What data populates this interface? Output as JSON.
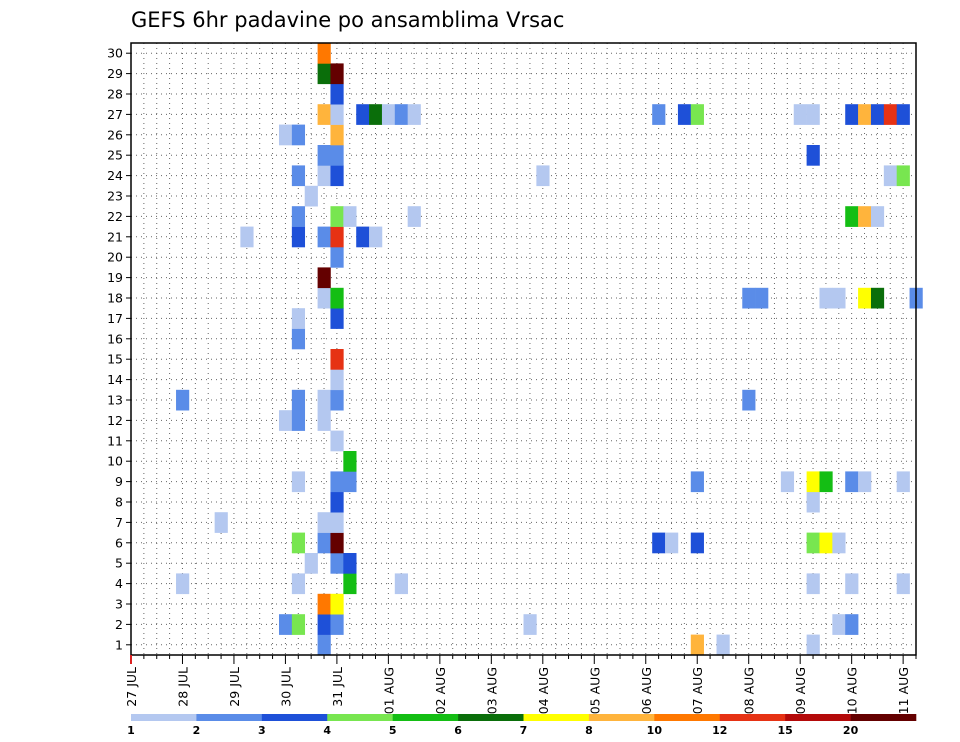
{
  "chart_data": {
    "type": "heatmap",
    "title": "GEFS 6hr padavine po ansamblima Vrsac",
    "xlabel": "",
    "ylabel": "",
    "x_ticks": [
      "27 JUL",
      "28 JUL",
      "29 JUL",
      "30 JUL",
      "31 JUL",
      "01 AUG",
      "02 AUG",
      "03 AUG",
      "04 AUG",
      "05 AUG",
      "06 AUG",
      "07 AUG",
      "08 AUG",
      "09 AUG",
      "10 AUG",
      "11 AUG"
    ],
    "x_unit": "6-hour step from 27 JUL 00Z",
    "xlim": [
      0,
      61
    ],
    "y_ticks": [
      1,
      2,
      3,
      4,
      5,
      6,
      7,
      8,
      9,
      10,
      11,
      12,
      13,
      14,
      15,
      16,
      17,
      18,
      19,
      20,
      21,
      22,
      23,
      24,
      25,
      26,
      27,
      28,
      29,
      30
    ],
    "ylim": [
      0.5,
      30.5
    ],
    "grid": true,
    "legend_position": "bottom",
    "legend_levels": [
      "1",
      "2",
      "3",
      "4",
      "5",
      "6",
      "7",
      "8",
      "10",
      "12",
      "15",
      "20"
    ],
    "colors": [
      "#b4c8f0",
      "#5a8ce8",
      "#1e50d8",
      "#78e650",
      "#14be14",
      "#0a6e0a",
      "#ffff00",
      "#ffb43c",
      "#ff7800",
      "#e63214",
      "#b40a0a",
      "#640000"
    ],
    "cells": [
      [
        15,
        1,
        1
      ],
      [
        44,
        1,
        7
      ],
      [
        46,
        1,
        0
      ],
      [
        53,
        1,
        0
      ],
      [
        12,
        2,
        1
      ],
      [
        13,
        2,
        3
      ],
      [
        15,
        2,
        2
      ],
      [
        16,
        2,
        1
      ],
      [
        31,
        2,
        0
      ],
      [
        55,
        2,
        0
      ],
      [
        56,
        2,
        1
      ],
      [
        15,
        3,
        8
      ],
      [
        16,
        3,
        6
      ],
      [
        4,
        4,
        0
      ],
      [
        13,
        4,
        0
      ],
      [
        17,
        4,
        4
      ],
      [
        21,
        4,
        0
      ],
      [
        53,
        4,
        0
      ],
      [
        56,
        4,
        0
      ],
      [
        60,
        4,
        0
      ],
      [
        14,
        5,
        0
      ],
      [
        16,
        5,
        1
      ],
      [
        17,
        5,
        2
      ],
      [
        13,
        6,
        3
      ],
      [
        15,
        6,
        1
      ],
      [
        16,
        6,
        11
      ],
      [
        41,
        6,
        2
      ],
      [
        42,
        6,
        0
      ],
      [
        44,
        6,
        2
      ],
      [
        53,
        6,
        3
      ],
      [
        54,
        6,
        6
      ],
      [
        55,
        6,
        0
      ],
      [
        7,
        7,
        0
      ],
      [
        15,
        7,
        0
      ],
      [
        16,
        7,
        0
      ],
      [
        16,
        8,
        2
      ],
      [
        53,
        8,
        0
      ],
      [
        13,
        9,
        0
      ],
      [
        16,
        9,
        1
      ],
      [
        17,
        9,
        1
      ],
      [
        44,
        9,
        1
      ],
      [
        51,
        9,
        0
      ],
      [
        53,
        9,
        6
      ],
      [
        54,
        9,
        4
      ],
      [
        56,
        9,
        1
      ],
      [
        57,
        9,
        0
      ],
      [
        60,
        9,
        0
      ],
      [
        17,
        10,
        4
      ],
      [
        16,
        11,
        0
      ],
      [
        12,
        12,
        0
      ],
      [
        13,
        12,
        1
      ],
      [
        15,
        12,
        0
      ],
      [
        4,
        13,
        1
      ],
      [
        13,
        13,
        1
      ],
      [
        15,
        13,
        0
      ],
      [
        16,
        13,
        1
      ],
      [
        48,
        13,
        1
      ],
      [
        16,
        14,
        0
      ],
      [
        16,
        15,
        9
      ],
      [
        13,
        16,
        1
      ],
      [
        13,
        17,
        0
      ],
      [
        16,
        17,
        2
      ],
      [
        15,
        18,
        0
      ],
      [
        16,
        18,
        4
      ],
      [
        48,
        18,
        1
      ],
      [
        49,
        18,
        1
      ],
      [
        54,
        18,
        0
      ],
      [
        55,
        18,
        0
      ],
      [
        57,
        18,
        6
      ],
      [
        58,
        18,
        5
      ],
      [
        61,
        18,
        1
      ],
      [
        15,
        19,
        11
      ],
      [
        16,
        20,
        1
      ],
      [
        9,
        21,
        0
      ],
      [
        13,
        21,
        2
      ],
      [
        15,
        21,
        1
      ],
      [
        16,
        21,
        9
      ],
      [
        18,
        21,
        2
      ],
      [
        19,
        21,
        0
      ],
      [
        13,
        22,
        1
      ],
      [
        16,
        22,
        3
      ],
      [
        17,
        22,
        0
      ],
      [
        22,
        22,
        0
      ],
      [
        56,
        22,
        4
      ],
      [
        57,
        22,
        7
      ],
      [
        58,
        22,
        0
      ],
      [
        14,
        23,
        0
      ],
      [
        13,
        24,
        1
      ],
      [
        15,
        24,
        0
      ],
      [
        16,
        24,
        2
      ],
      [
        32,
        24,
        0
      ],
      [
        59,
        24,
        0
      ],
      [
        60,
        24,
        3
      ],
      [
        15,
        25,
        1
      ],
      [
        16,
        25,
        1
      ],
      [
        53,
        25,
        2
      ],
      [
        12,
        26,
        0
      ],
      [
        13,
        26,
        1
      ],
      [
        16,
        26,
        7
      ],
      [
        15,
        27,
        7
      ],
      [
        16,
        27,
        0
      ],
      [
        18,
        27,
        2
      ],
      [
        19,
        27,
        5
      ],
      [
        20,
        27,
        0
      ],
      [
        21,
        27,
        1
      ],
      [
        22,
        27,
        0
      ],
      [
        41,
        27,
        1
      ],
      [
        43,
        27,
        2
      ],
      [
        44,
        27,
        3
      ],
      [
        52,
        27,
        0
      ],
      [
        53,
        27,
        0
      ],
      [
        56,
        27,
        2
      ],
      [
        57,
        27,
        7
      ],
      [
        58,
        27,
        2
      ],
      [
        59,
        27,
        9
      ],
      [
        60,
        27,
        2
      ],
      [
        16,
        28,
        2
      ],
      [
        15,
        29,
        5
      ],
      [
        16,
        29,
        11
      ],
      [
        15,
        30,
        8
      ]
    ]
  }
}
